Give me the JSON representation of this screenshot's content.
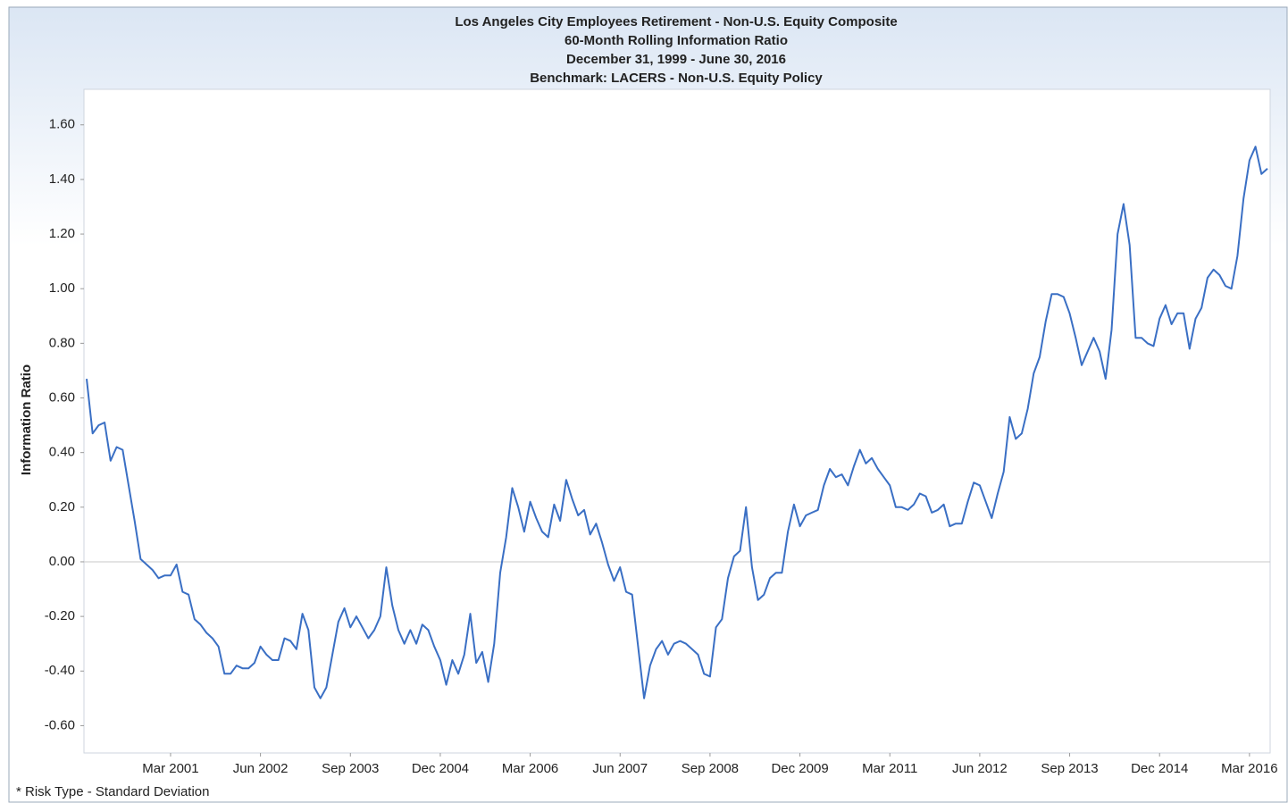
{
  "chart_data": {
    "type": "line",
    "title": [
      "Los Angeles City Employees Retirement - Non-U.S. Equity Composite",
      "60-Month Rolling Information Ratio",
      "December 31, 1999 - June 30, 2016",
      "Benchmark: LACERS - Non-U.S. Equity  Policy"
    ],
    "y_label": "Information Ratio",
    "footnote": "* Risk Type - Standard Deviation",
    "x": [
      "2000-01",
      "2000-02",
      "2000-03",
      "2000-04",
      "2000-05",
      "2000-06",
      "2000-07",
      "2000-08",
      "2000-09",
      "2000-10",
      "2000-11",
      "2000-12",
      "2001-01",
      "2001-02",
      "2001-03",
      "2001-04",
      "2001-05",
      "2001-06",
      "2001-07",
      "2001-08",
      "2001-09",
      "2001-10",
      "2001-11",
      "2001-12",
      "2002-01",
      "2002-02",
      "2002-03",
      "2002-04",
      "2002-05",
      "2002-06",
      "2002-07",
      "2002-08",
      "2002-09",
      "2002-10",
      "2002-11",
      "2002-12",
      "2003-01",
      "2003-02",
      "2003-03",
      "2003-04",
      "2003-05",
      "2003-06",
      "2003-07",
      "2003-08",
      "2003-09",
      "2003-10",
      "2003-11",
      "2003-12",
      "2004-01",
      "2004-02",
      "2004-03",
      "2004-04",
      "2004-05",
      "2004-06",
      "2004-07",
      "2004-08",
      "2004-09",
      "2004-10",
      "2004-11",
      "2004-12",
      "2005-01",
      "2005-02",
      "2005-03",
      "2005-04",
      "2005-05",
      "2005-06",
      "2005-07",
      "2005-08",
      "2005-09",
      "2005-10",
      "2005-11",
      "2005-12",
      "2006-01",
      "2006-02",
      "2006-03",
      "2006-04",
      "2006-05",
      "2006-06",
      "2006-07",
      "2006-08",
      "2006-09",
      "2006-10",
      "2006-11",
      "2006-12",
      "2007-01",
      "2007-02",
      "2007-03",
      "2007-04",
      "2007-05",
      "2007-06",
      "2007-07",
      "2007-08",
      "2007-09",
      "2007-10",
      "2007-11",
      "2007-12",
      "2008-01",
      "2008-02",
      "2008-03",
      "2008-04",
      "2008-05",
      "2008-06",
      "2008-07",
      "2008-08",
      "2008-09",
      "2008-10",
      "2008-11",
      "2008-12",
      "2009-01",
      "2009-02",
      "2009-03",
      "2009-04",
      "2009-05",
      "2009-06",
      "2009-07",
      "2009-08",
      "2009-09",
      "2009-10",
      "2009-11",
      "2009-12",
      "2010-01",
      "2010-02",
      "2010-03",
      "2010-04",
      "2010-05",
      "2010-06",
      "2010-07",
      "2010-08",
      "2010-09",
      "2010-10",
      "2010-11",
      "2010-12",
      "2011-01",
      "2011-02",
      "2011-03",
      "2011-04",
      "2011-05",
      "2011-06",
      "2011-07",
      "2011-08",
      "2011-09",
      "2011-10",
      "2011-11",
      "2011-12",
      "2012-01",
      "2012-02",
      "2012-03",
      "2012-04",
      "2012-05",
      "2012-06",
      "2012-07",
      "2012-08",
      "2012-09",
      "2012-10",
      "2012-11",
      "2012-12",
      "2013-01",
      "2013-02",
      "2013-03",
      "2013-04",
      "2013-05",
      "2013-06",
      "2013-07",
      "2013-08",
      "2013-09",
      "2013-10",
      "2013-11",
      "2013-12",
      "2014-01",
      "2014-02",
      "2014-03",
      "2014-04",
      "2014-05",
      "2014-06",
      "2014-07",
      "2014-08",
      "2014-09",
      "2014-10",
      "2014-11",
      "2014-12",
      "2015-01",
      "2015-02",
      "2015-03",
      "2015-04",
      "2015-05",
      "2015-06",
      "2015-07",
      "2015-08",
      "2015-09",
      "2015-10",
      "2015-11",
      "2015-12",
      "2016-01",
      "2016-02",
      "2016-03",
      "2016-04",
      "2016-05",
      "2016-06"
    ],
    "series": [
      {
        "name": "Non-U.S. Equity Composite",
        "color": "#3a6fc4",
        "values": [
          0.67,
          0.47,
          0.5,
          0.51,
          0.37,
          0.42,
          0.41,
          0.28,
          0.15,
          0.01,
          -0.01,
          -0.03,
          -0.06,
          -0.05,
          -0.05,
          -0.01,
          -0.11,
          -0.12,
          -0.21,
          -0.23,
          -0.26,
          -0.28,
          -0.31,
          -0.41,
          -0.41,
          -0.38,
          -0.39,
          -0.39,
          -0.37,
          -0.31,
          -0.34,
          -0.36,
          -0.36,
          -0.28,
          -0.29,
          -0.32,
          -0.19,
          -0.25,
          -0.46,
          -0.5,
          -0.46,
          -0.34,
          -0.22,
          -0.17,
          -0.24,
          -0.2,
          -0.24,
          -0.28,
          -0.25,
          -0.2,
          -0.02,
          -0.16,
          -0.25,
          -0.3,
          -0.25,
          -0.3,
          -0.23,
          -0.25,
          -0.31,
          -0.36,
          -0.45,
          -0.36,
          -0.41,
          -0.34,
          -0.19,
          -0.37,
          -0.33,
          -0.44,
          -0.3,
          -0.04,
          0.09,
          0.27,
          0.2,
          0.11,
          0.22,
          0.16,
          0.11,
          0.09,
          0.21,
          0.15,
          0.3,
          0.23,
          0.17,
          0.19,
          0.1,
          0.14,
          0.07,
          -0.01,
          -0.07,
          -0.02,
          -0.11,
          -0.12,
          -0.31,
          -0.5,
          -0.38,
          -0.32,
          -0.29,
          -0.34,
          -0.3,
          -0.29,
          -0.3,
          -0.32,
          -0.34,
          -0.41,
          -0.42,
          -0.24,
          -0.21,
          -0.06,
          0.02,
          0.04,
          0.2,
          -0.02,
          -0.14,
          -0.12,
          -0.06,
          -0.04,
          -0.04,
          0.11,
          0.21,
          0.13,
          0.17,
          0.18,
          0.19,
          0.28,
          0.34,
          0.31,
          0.32,
          0.28,
          0.35,
          0.41,
          0.36,
          0.38,
          0.34,
          0.31,
          0.28,
          0.2,
          0.2,
          0.19,
          0.21,
          0.25,
          0.24,
          0.18,
          0.19,
          0.21,
          0.13,
          0.14,
          0.14,
          0.22,
          0.29,
          0.28,
          0.22,
          0.16,
          0.25,
          0.33,
          0.53,
          0.45,
          0.47,
          0.56,
          0.69,
          0.75,
          0.88,
          0.98,
          0.98,
          0.97,
          0.91,
          0.82,
          0.72,
          0.77,
          0.82,
          0.77,
          0.67,
          0.85,
          1.2,
          1.31,
          1.16,
          0.82,
          0.82,
          0.8,
          0.79,
          0.89,
          0.94,
          0.87,
          0.91,
          0.91,
          0.78,
          0.89,
          0.93,
          1.04,
          1.07,
          1.05,
          1.01,
          1.0,
          1.12,
          1.33,
          1.47,
          1.52,
          1.42,
          1.44
        ]
      }
    ],
    "xlim": [
      "2000-01",
      "2016-06"
    ],
    "xticks": [
      {
        "value": "2001-03",
        "label": "Mar 2001"
      },
      {
        "value": "2002-06",
        "label": "Jun 2002"
      },
      {
        "value": "2003-09",
        "label": "Sep 2003"
      },
      {
        "value": "2004-12",
        "label": "Dec 2004"
      },
      {
        "value": "2006-03",
        "label": "Mar 2006"
      },
      {
        "value": "2007-06",
        "label": "Jun 2007"
      },
      {
        "value": "2008-09",
        "label": "Sep 2008"
      },
      {
        "value": "2009-12",
        "label": "Dec 2009"
      },
      {
        "value": "2011-03",
        "label": "Mar 2011"
      },
      {
        "value": "2012-06",
        "label": "Jun 2012"
      },
      {
        "value": "2013-09",
        "label": "Sep 2013"
      },
      {
        "value": "2014-12",
        "label": "Dec 2014"
      },
      {
        "value": "2016-03",
        "label": "Mar 2016"
      }
    ],
    "ylim": [
      -0.7,
      1.73
    ],
    "yticks": [
      {
        "value": -0.6,
        "label": "-0.60"
      },
      {
        "value": -0.4,
        "label": "-0.40"
      },
      {
        "value": -0.2,
        "label": "-0.20"
      },
      {
        "value": 0,
        "label": "0.00"
      },
      {
        "value": 0.2,
        "label": "0.20"
      },
      {
        "value": 0.4,
        "label": "0.40"
      },
      {
        "value": 0.6,
        "label": "0.60"
      },
      {
        "value": 0.8,
        "label": "0.80"
      },
      {
        "value": 1.0,
        "label": "1.00"
      },
      {
        "value": 1.2,
        "label": "1.20"
      },
      {
        "value": 1.4,
        "label": "1.40"
      },
      {
        "value": 1.6,
        "label": "1.60"
      }
    ],
    "zero_line": true,
    "grid": false
  }
}
